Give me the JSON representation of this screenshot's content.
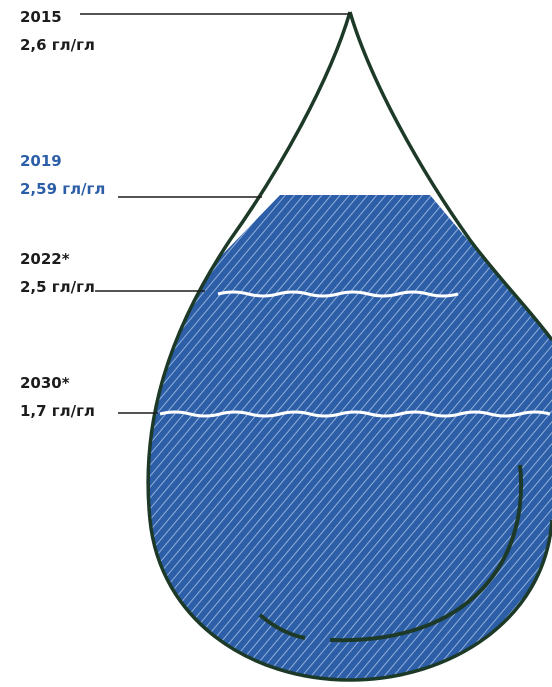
{
  "labels": [
    {
      "year": "2015",
      "value": "2,6 гл/гл"
    },
    {
      "year": "2019",
      "value": "2,59 гл/гл"
    },
    {
      "year": "2022*",
      "value": "2,5 гл/гл"
    },
    {
      "year": "2030*",
      "value": "1,7 гл/гл"
    }
  ]
}
